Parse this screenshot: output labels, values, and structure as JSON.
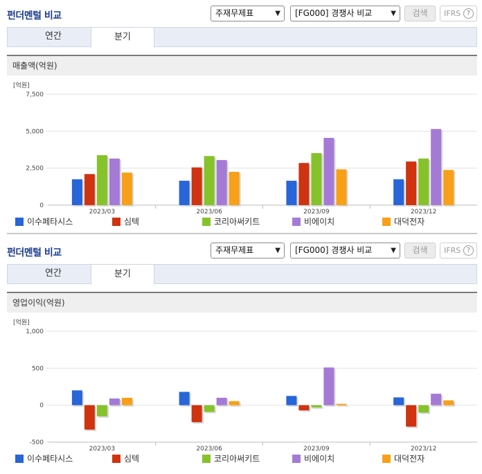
{
  "common": {
    "title": "펀더멘털 비교",
    "statement_select": "주재무제표",
    "compare_select": "[FG000] 경쟁사 비교",
    "search_label": "검색",
    "ifrs_label": "IFRS",
    "help_symbol": "?",
    "tab_annual": "연간",
    "tab_quarter": "분기",
    "unit_label": "[억원]"
  },
  "colors": {
    "이수페타시스": "#2765d8",
    "심텍": "#d0330f",
    "코리아써키트": "#86c22a",
    "비에이치": "#a57ad6",
    "대덕전자": "#f7a018"
  },
  "legend": [
    "이수페타시스",
    "심텍",
    "코리아써키트",
    "비에이치",
    "대덕전자"
  ],
  "chart_data": [
    {
      "type": "bar",
      "title": "매출액(억원)",
      "ylabel": "[억원]",
      "categories": [
        "2023/03",
        "2023/06",
        "2023/09",
        "2023/12"
      ],
      "ylim": [
        0,
        7500
      ],
      "yticks": [
        "0",
        "2,500",
        "5,000",
        "7,500"
      ],
      "ytick_values": [
        0,
        2500,
        5000,
        7500
      ],
      "series": [
        {
          "name": "이수페타시스",
          "values": [
            1750,
            1650,
            1650,
            1750
          ]
        },
        {
          "name": "심텍",
          "values": [
            2100,
            2550,
            2850,
            2950
          ]
        },
        {
          "name": "코리아써키트",
          "values": [
            3380,
            3320,
            3520,
            3150
          ]
        },
        {
          "name": "비에이치",
          "values": [
            3150,
            3050,
            4550,
            5150
          ]
        },
        {
          "name": "대덕전자",
          "values": [
            2200,
            2250,
            2420,
            2380
          ]
        }
      ]
    },
    {
      "type": "bar",
      "title": "영업이익(억원)",
      "ylabel": "[억원]",
      "categories": [
        "2023/03",
        "2023/06",
        "2023/09",
        "2023/12"
      ],
      "ylim": [
        -500,
        1000
      ],
      "yticks": [
        "-500",
        "0",
        "500",
        "1,000"
      ],
      "ytick_values": [
        -500,
        0,
        500,
        1000
      ],
      "series": [
        {
          "name": "이수페타시스",
          "values": [
            200,
            180,
            125,
            105
          ]
        },
        {
          "name": "심텍",
          "values": [
            -330,
            -230,
            -70,
            -290
          ]
        },
        {
          "name": "코리아써키트",
          "values": [
            -150,
            -90,
            -30,
            -100
          ]
        },
        {
          "name": "비에이치",
          "values": [
            90,
            100,
            510,
            155
          ]
        },
        {
          "name": "대덕전자",
          "values": [
            100,
            55,
            18,
            65
          ]
        }
      ]
    }
  ]
}
